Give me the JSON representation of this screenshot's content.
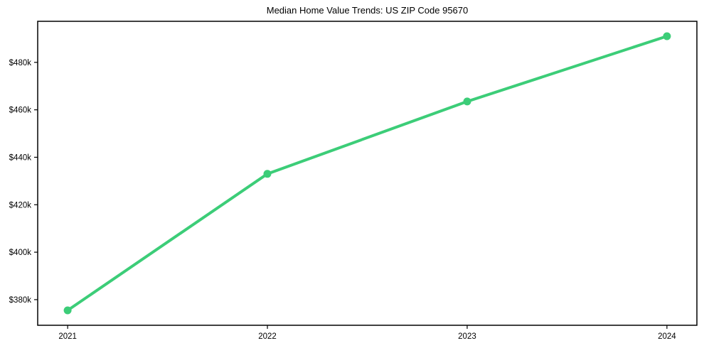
{
  "title": "Median Home Value Trends: US ZIP Code 95670",
  "chart_data": {
    "type": "line",
    "x": [
      2021,
      2022,
      2023,
      2024
    ],
    "x_tick_labels": [
      "2021",
      "2022",
      "2023",
      "2024"
    ],
    "series": [
      {
        "name": "Median Home Value",
        "values": [
          375500,
          433000,
          463500,
          491000
        ],
        "color": "#3ccd78",
        "marker": "circle"
      }
    ],
    "y_ticks": [
      380000,
      400000,
      420000,
      440000,
      460000,
      480000
    ],
    "y_tick_labels": [
      "$380k",
      "$400k",
      "$420k",
      "$440k",
      "$460k",
      "$480k"
    ],
    "xlim": [
      2020.85,
      2024.15
    ],
    "ylim": [
      369200,
      497300
    ],
    "grid": false,
    "legend": false,
    "axes_color": "#000000",
    "text_color": "#000000",
    "background": "#ffffff"
  }
}
